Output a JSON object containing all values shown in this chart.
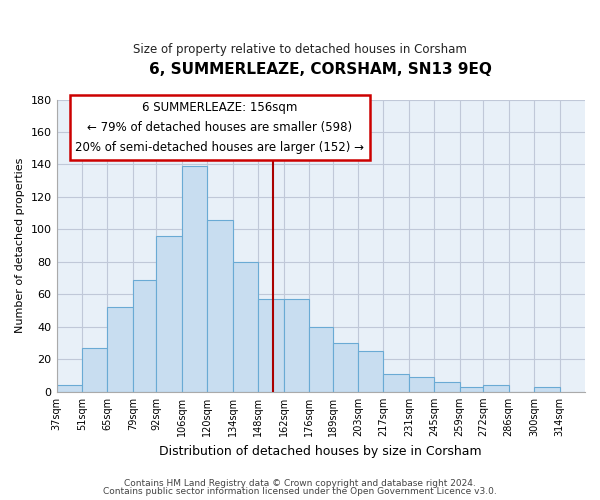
{
  "title": "6, SUMMERLEAZE, CORSHAM, SN13 9EQ",
  "subtitle": "Size of property relative to detached houses in Corsham",
  "xlabel": "Distribution of detached houses by size in Corsham",
  "ylabel": "Number of detached properties",
  "bar_color": "#c8ddf0",
  "bar_edge_color": "#6aaad4",
  "property_line_x": 156,
  "property_line_color": "#aa0000",
  "annotation_title": "6 SUMMERLEAZE: 156sqm",
  "annotation_line1": "← 79% of detached houses are smaller (598)",
  "annotation_line2": "20% of semi-detached houses are larger (152) →",
  "annotation_box_edge": "#cc0000",
  "bins": [
    37,
    51,
    65,
    79,
    92,
    106,
    120,
    134,
    148,
    162,
    176,
    189,
    203,
    217,
    231,
    245,
    259,
    272,
    286,
    300,
    314
  ],
  "counts": [
    4,
    27,
    52,
    69,
    96,
    139,
    106,
    80,
    57,
    57,
    40,
    30,
    25,
    11,
    9,
    6,
    3,
    4,
    0,
    3
  ],
  "ylim": [
    0,
    180
  ],
  "yticks": [
    0,
    20,
    40,
    60,
    80,
    100,
    120,
    140,
    160,
    180
  ],
  "footer_line1": "Contains HM Land Registry data © Crown copyright and database right 2024.",
  "footer_line2": "Contains public sector information licensed under the Open Government Licence v3.0.",
  "background_color": "#ffffff",
  "plot_bg_color": "#e8f0f8",
  "grid_color": "#c0c8d8"
}
